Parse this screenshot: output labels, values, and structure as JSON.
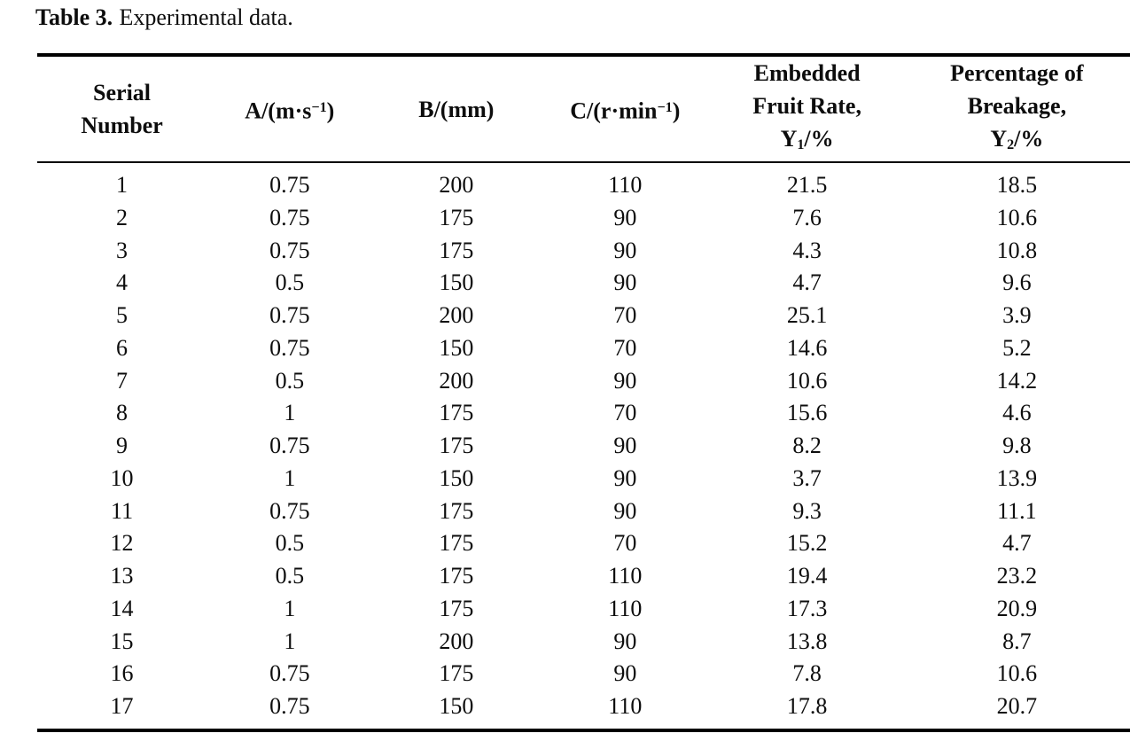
{
  "page": {
    "caption": {
      "label": "Table 3.",
      "text": "Experimental data."
    }
  },
  "colors": {
    "text": "#0d0d0d",
    "rule": "#000000",
    "background": "#ffffff"
  },
  "table": {
    "columns": [
      {
        "label": "Serial Number",
        "lines": [
          [
            {
              "t": "Serial"
            }
          ],
          [
            {
              "t": "Number"
            }
          ]
        ]
      },
      {
        "label": "A/(m·s−1)",
        "lines": [
          [
            {
              "t": "A/(m·s"
            },
            {
              "t": "−1",
              "sup": true
            },
            {
              "t": ")"
            }
          ]
        ]
      },
      {
        "label": "B/(mm)",
        "lines": [
          [
            {
              "t": "B/(mm)"
            }
          ]
        ]
      },
      {
        "label": "C/(r·min−1)",
        "lines": [
          [
            {
              "t": "C/(r·min"
            },
            {
              "t": "−1",
              "sup": true
            },
            {
              "t": ")"
            }
          ]
        ]
      },
      {
        "label": "Embedded Fruit Rate, Y1/%",
        "lines": [
          [
            {
              "t": "Embedded"
            }
          ],
          [
            {
              "t": "Fruit Rate,"
            }
          ],
          [
            {
              "t": "Y"
            },
            {
              "t": "1",
              "sub": true
            },
            {
              "t": "/%"
            }
          ]
        ]
      },
      {
        "label": "Percentage of Breakage, Y2/%",
        "lines": [
          [
            {
              "t": "Percentage of"
            }
          ],
          [
            {
              "t": "Breakage,"
            }
          ],
          [
            {
              "t": "Y"
            },
            {
              "t": "2",
              "sub": true
            },
            {
              "t": "/%"
            }
          ]
        ]
      }
    ],
    "rows": [
      [
        "1",
        "0.75",
        "200",
        "110",
        "21.5",
        "18.5"
      ],
      [
        "2",
        "0.75",
        "175",
        "90",
        "7.6",
        "10.6"
      ],
      [
        "3",
        "0.75",
        "175",
        "90",
        "4.3",
        "10.8"
      ],
      [
        "4",
        "0.5",
        "150",
        "90",
        "4.7",
        "9.6"
      ],
      [
        "5",
        "0.75",
        "200",
        "70",
        "25.1",
        "3.9"
      ],
      [
        "6",
        "0.75",
        "150",
        "70",
        "14.6",
        "5.2"
      ],
      [
        "7",
        "0.5",
        "200",
        "90",
        "10.6",
        "14.2"
      ],
      [
        "8",
        "1",
        "175",
        "70",
        "15.6",
        "4.6"
      ],
      [
        "9",
        "0.75",
        "175",
        "90",
        "8.2",
        "9.8"
      ],
      [
        "10",
        "1",
        "150",
        "90",
        "3.7",
        "13.9"
      ],
      [
        "11",
        "0.75",
        "175",
        "90",
        "9.3",
        "11.1"
      ],
      [
        "12",
        "0.5",
        "175",
        "70",
        "15.2",
        "4.7"
      ],
      [
        "13",
        "0.5",
        "175",
        "110",
        "19.4",
        "23.2"
      ],
      [
        "14",
        "1",
        "175",
        "110",
        "17.3",
        "20.9"
      ],
      [
        "15",
        "1",
        "200",
        "90",
        "13.8",
        "8.7"
      ],
      [
        "16",
        "0.75",
        "175",
        "90",
        "7.8",
        "10.6"
      ],
      [
        "17",
        "0.75",
        "150",
        "110",
        "17.8",
        "20.7"
      ]
    ],
    "column_widths_pct": [
      15.5,
      15.2,
      15.3,
      15.6,
      17.7,
      20.7
    ]
  }
}
